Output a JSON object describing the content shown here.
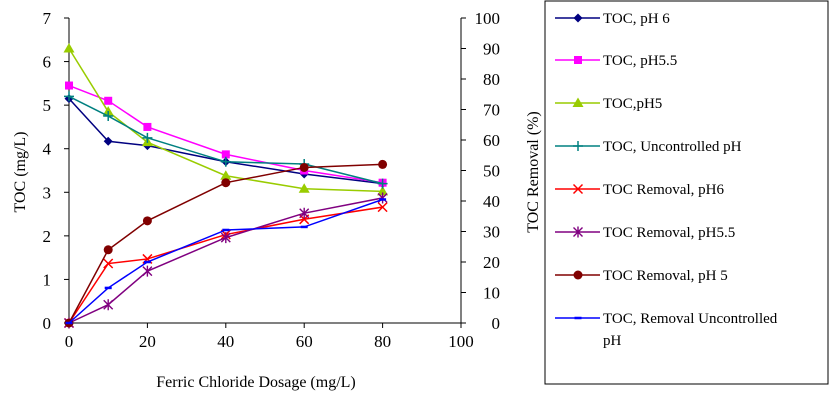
{
  "chart_data": {
    "type": "line",
    "xlabel": "Ferric Chloride Dosage (mg/L)",
    "ylabel": "TOC (mg/L)",
    "y2label": "TOC Removal (%)",
    "xlim": [
      0,
      100
    ],
    "ylim": [
      0,
      7
    ],
    "y2lim": [
      0,
      100
    ],
    "xticks": [
      "0",
      "20",
      "40",
      "60",
      "80",
      "100"
    ],
    "yticks": [
      "0",
      "1",
      "2",
      "3",
      "4",
      "5",
      "6",
      "7"
    ],
    "y2ticks": [
      "0",
      "10",
      "20",
      "30",
      "40",
      "50",
      "60",
      "70",
      "80",
      "90",
      "100"
    ],
    "legend_position": "right",
    "series": [
      {
        "name": "TOC, pH 6",
        "axis": "left",
        "color": "#000080",
        "marker": "diamond",
        "x": [
          0,
          10,
          20,
          40,
          60,
          80
        ],
        "y": [
          5.15,
          4.17,
          4.07,
          3.7,
          3.42,
          3.2
        ]
      },
      {
        "name": "TOC, pH5.5",
        "axis": "left",
        "color": "#ff00ff",
        "marker": "square",
        "x": [
          0,
          10,
          20,
          40,
          60,
          80
        ],
        "y": [
          5.45,
          5.1,
          4.5,
          3.87,
          3.5,
          3.22
        ]
      },
      {
        "name": "TOC,pH5",
        "axis": "left",
        "color": "#99cc00",
        "marker": "triangle",
        "x": [
          0,
          10,
          20,
          40,
          60,
          80
        ],
        "y": [
          6.3,
          4.85,
          4.15,
          3.38,
          3.08,
          3.02
        ]
      },
      {
        "name": "TOC, Uncontrolled pH",
        "axis": "left",
        "color": "#008080",
        "marker": "plus",
        "x": [
          0,
          10,
          20,
          40,
          60,
          80
        ],
        "y": [
          5.2,
          4.75,
          4.25,
          3.7,
          3.65,
          3.2
        ]
      },
      {
        "name": "TOC Removal, pH6",
        "axis": "right",
        "color": "#ff0000",
        "marker": "x",
        "x": [
          0,
          10,
          20,
          40,
          60,
          80
        ],
        "y": [
          0,
          19.5,
          21,
          29,
          34,
          38
        ]
      },
      {
        "name": "TOC Removal, pH5.5",
        "axis": "right",
        "color": "#800080",
        "marker": "star",
        "x": [
          0,
          10,
          20,
          40,
          60,
          80
        ],
        "y": [
          0,
          6,
          17,
          28,
          36,
          41
        ]
      },
      {
        "name": "TOC Removal, pH 5",
        "axis": "right",
        "color": "#800000",
        "marker": "circle",
        "x": [
          0,
          10,
          20,
          40,
          60,
          80
        ],
        "y": [
          0,
          24,
          33.5,
          46,
          51,
          52
        ]
      },
      {
        "name": "TOC, Removal Uncontrolled pH",
        "axis": "right",
        "color": "#0000ff",
        "marker": "dash",
        "x": [
          0,
          10,
          20,
          40,
          60,
          80
        ],
        "y": [
          0,
          11.5,
          20,
          30.5,
          31.5,
          40.5
        ]
      }
    ]
  }
}
